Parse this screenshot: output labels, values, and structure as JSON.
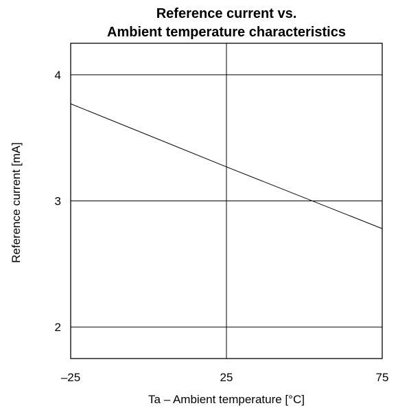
{
  "chart_data": {
    "type": "line",
    "title_lines": [
      "Reference current vs.",
      "Ambient temperature characteristics"
    ],
    "xlabel": "Ta – Ambient temperature [°C]",
    "ylabel": "Reference current [mA]",
    "xlim": [
      -25,
      75
    ],
    "ylim": [
      1.75,
      4.25
    ],
    "xticks": [
      -25,
      25,
      75
    ],
    "xtick_labels": [
      "–25",
      "25",
      "75"
    ],
    "yticks": [
      2,
      3,
      4
    ],
    "ytick_labels": [
      "2",
      "3",
      "4"
    ],
    "grid": true,
    "series": [
      {
        "x": [
          -25,
          25,
          75
        ],
        "y": [
          3.77,
          3.27,
          2.78
        ]
      }
    ]
  }
}
